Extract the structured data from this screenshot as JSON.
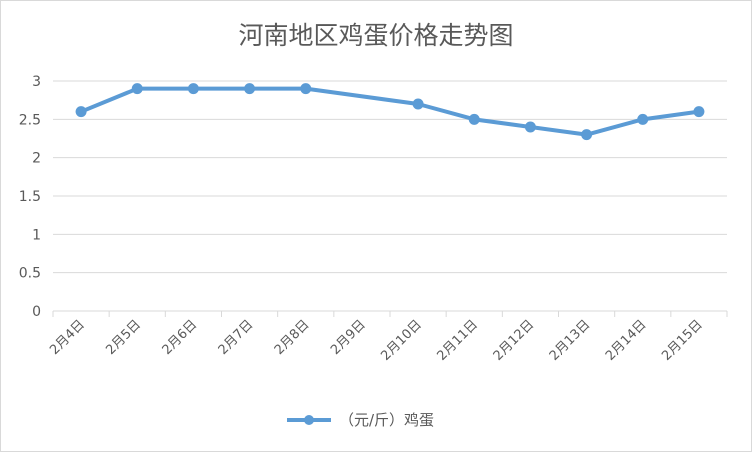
{
  "chart_data": {
    "type": "line",
    "title": "河南地区鸡蛋价格走势图",
    "xlabel": "",
    "ylabel": "",
    "categories": [
      "2月4日",
      "2月5日",
      "2月6日",
      "2月7日",
      "2月8日",
      "2月9日",
      "2月10日",
      "2月11日",
      "2月12日",
      "2月13日",
      "2月14日",
      "2月15日"
    ],
    "series": [
      {
        "name": "（元/斤）鸡蛋",
        "values": [
          2.6,
          2.9,
          2.9,
          2.9,
          2.9,
          null,
          2.7,
          2.5,
          2.4,
          2.3,
          2.5,
          2.6
        ],
        "color": "#5b9bd5"
      }
    ],
    "y_ticks": [
      "0",
      "0.5",
      "1",
      "1.5",
      "2",
      "2.5",
      "3"
    ],
    "ylim": [
      0,
      3
    ],
    "grid": true,
    "legend_position": "bottom"
  }
}
